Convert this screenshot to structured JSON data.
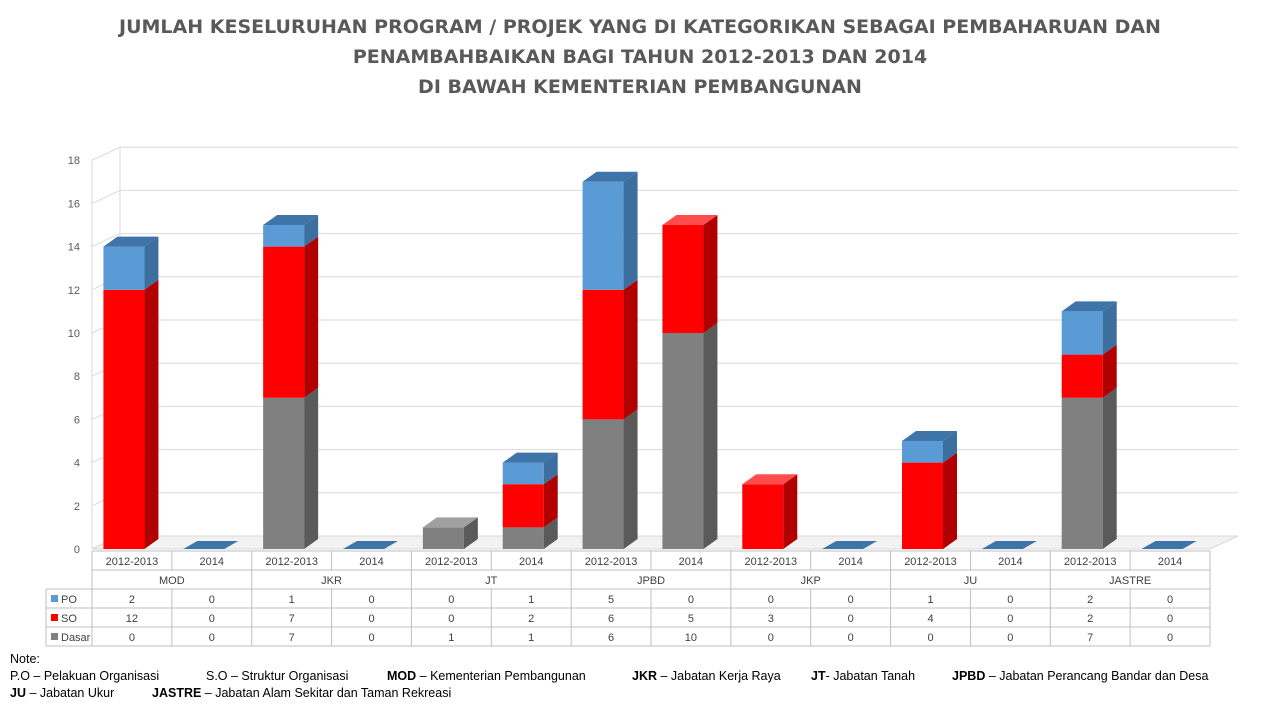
{
  "chart_data": {
    "type": "bar",
    "stacked": true,
    "title_lines": [
      "JUMLAH KESELURUHAN PROGRAM / PROJEK YANG DI KATEGORIKAN SEBAGAI PEMBAHARUAN DAN",
      "PENAMBAHBAIKAN BAGI TAHUN 2012-2013 DAN 2014",
      "DI BAWAH KEMENTERIAN PEMBANGUNAN"
    ],
    "groups": [
      "MOD",
      "JKR",
      "JT",
      "JPBD",
      "JKP",
      "JU",
      "JASTRE"
    ],
    "categories": [
      "2012-2013",
      "2014",
      "2012-2013",
      "2014",
      "2012-2013",
      "2014",
      "2012-2013",
      "2014",
      "2012-2013",
      "2014",
      "2012-2013",
      "2014",
      "2012-2013",
      "2014"
    ],
    "series": [
      {
        "name": "Dasar",
        "color": "#808080",
        "side_color": "#5a5a5a",
        "top_color": "#a0a0a0",
        "values": [
          0,
          0,
          7,
          0,
          1,
          1,
          6,
          10,
          0,
          0,
          0,
          0,
          7,
          0
        ]
      },
      {
        "name": "SO",
        "color": "#ff0000",
        "side_color": "#b00000",
        "top_color": "#ff4d4d",
        "values": [
          12,
          0,
          7,
          0,
          0,
          2,
          6,
          5,
          3,
          0,
          4,
          0,
          2,
          0
        ]
      },
      {
        "name": "PO",
        "color": "#5b9bd5",
        "side_color": "#3c6e9e",
        "top_color": "#3f74a8",
        "values": [
          2,
          0,
          1,
          0,
          0,
          1,
          5,
          0,
          0,
          0,
          1,
          0,
          2,
          0
        ]
      }
    ],
    "table_row_order": [
      "PO",
      "SO",
      "Dasar"
    ],
    "ylim": [
      0,
      18
    ],
    "yticks": [
      0,
      2,
      4,
      6,
      8,
      10,
      12,
      14,
      16,
      18
    ],
    "grid": true,
    "legend": "data-table"
  },
  "notes": {
    "heading": "Note:",
    "row1": [
      {
        "bold": "",
        "text": "P.O – Pelakuan Organisasi"
      },
      {
        "bold": "",
        "text": "S.O – Struktur Organisasi"
      },
      {
        "bold": "MOD",
        "text": " – Kementerian Pembangunan"
      },
      {
        "bold": "JKR",
        "text": " – Jabatan Kerja Raya"
      },
      {
        "bold": "JT",
        "text": "- Jabatan Tanah"
      },
      {
        "bold": "JPBD",
        "text": " – Jabatan Perancang Bandar dan Desa"
      }
    ],
    "row2": [
      {
        "bold": "JU",
        "text": " – Jabatan Ukur"
      },
      {
        "bold": "JASTRE",
        "text": " – Jabatan Alam Sekitar dan Taman Rekreasi"
      }
    ]
  }
}
